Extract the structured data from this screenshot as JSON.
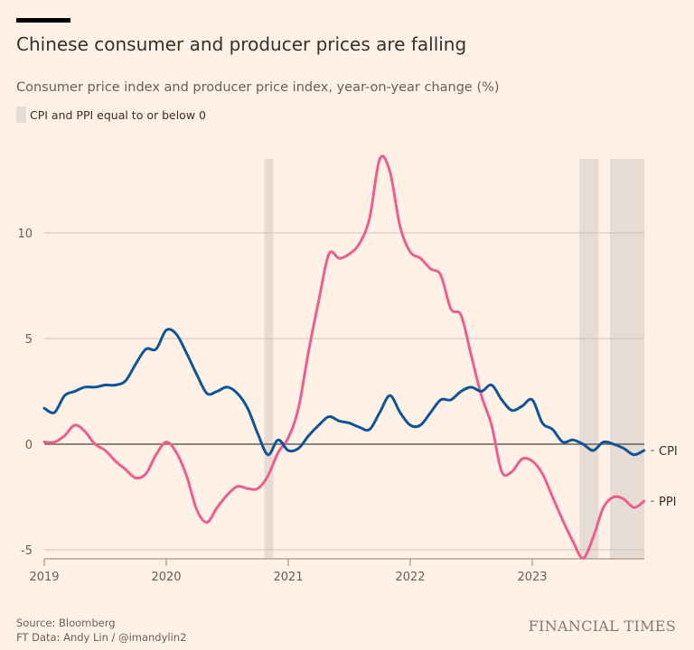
{
  "header": {
    "title": "Chinese consumer and producer prices are falling",
    "subtitle": "Consumer price index and producer price index, year-on-year change (%)",
    "legend_label": "CPI and PPI equal to or below 0"
  },
  "footer": {
    "source": "Source: Bloomberg",
    "credit": "FT Data: Andy Lin / @imandylin2",
    "brand": "FINANCIAL TIMES"
  },
  "colors": {
    "background": "#fff1e5",
    "cpi": "#0f5499",
    "ppi": "#eb5e8d",
    "shade": "#e6dcd4",
    "grid": "#ccc1b7",
    "zero": "#66605c"
  },
  "chart_data": {
    "type": "line",
    "title": "Chinese consumer and producer prices are falling",
    "subtitle": "Consumer price index and producer price index, year-on-year change (%)",
    "xlabel": "",
    "ylabel": "",
    "x_start": "2019-01",
    "x_frequency": "monthly",
    "xlim": [
      "2019-01",
      "2023-12"
    ],
    "ylim": [
      -5.4,
      13.5
    ],
    "yticks": [
      -5,
      0,
      5,
      10
    ],
    "ytick_labels": [
      "-5",
      "0",
      "5",
      "10"
    ],
    "xticks": [
      "2019",
      "2020",
      "2021",
      "2022",
      "2023"
    ],
    "grid": true,
    "legend": "inline-right",
    "shaded_periods": [
      {
        "start": "2020-11",
        "end": "2020-11",
        "label": "CPI and PPI equal to or below 0"
      },
      {
        "start": "2023-06",
        "end": "2023-07",
        "label": "CPI and PPI equal to or below 0"
      },
      {
        "start": "2023-09",
        "end": "2023-12",
        "label": "CPI and PPI equal to or below 0"
      }
    ],
    "series": [
      {
        "name": "CPI",
        "values": [
          1.7,
          1.5,
          2.3,
          2.5,
          2.7,
          2.7,
          2.8,
          2.8,
          3.0,
          3.8,
          4.5,
          4.5,
          5.4,
          5.2,
          4.3,
          3.3,
          2.4,
          2.5,
          2.7,
          2.4,
          1.7,
          0.5,
          -0.5,
          0.2,
          -0.3,
          -0.2,
          0.4,
          0.9,
          1.3,
          1.1,
          1.0,
          0.8,
          0.7,
          1.5,
          2.3,
          1.5,
          0.9,
          0.9,
          1.5,
          2.1,
          2.1,
          2.5,
          2.7,
          2.5,
          2.8,
          2.1,
          1.6,
          1.8,
          2.1,
          1.0,
          0.7,
          0.1,
          0.2,
          0.0,
          -0.3,
          0.1,
          0.0,
          -0.2,
          -0.5,
          -0.3
        ]
      },
      {
        "name": "PPI",
        "values": [
          0.1,
          0.1,
          0.4,
          0.9,
          0.6,
          0.0,
          -0.3,
          -0.8,
          -1.2,
          -1.6,
          -1.4,
          -0.5,
          0.1,
          -0.4,
          -1.5,
          -3.1,
          -3.7,
          -3.0,
          -2.4,
          -2.0,
          -2.1,
          -2.1,
          -1.5,
          -0.4,
          0.3,
          1.7,
          4.4,
          6.8,
          9.0,
          8.8,
          9.0,
          9.5,
          10.7,
          13.5,
          12.9,
          10.3,
          9.1,
          8.8,
          8.3,
          8.0,
          6.4,
          6.1,
          4.2,
          2.3,
          0.9,
          -1.3,
          -1.3,
          -0.7,
          -0.8,
          -1.4,
          -2.5,
          -3.6,
          -4.6,
          -5.4,
          -4.4,
          -3.0,
          -2.5,
          -2.6,
          -3.0,
          -2.7
        ]
      }
    ]
  }
}
